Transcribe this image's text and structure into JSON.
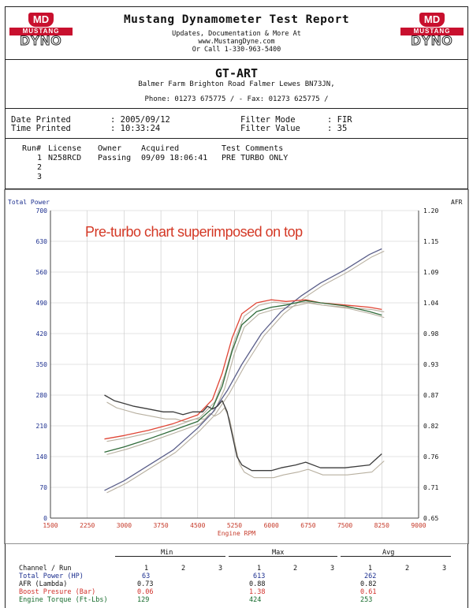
{
  "header": {
    "logo_left": {
      "badge": "MD",
      "top": "MUSTANG",
      "bottom": "DYNO"
    },
    "logo_right": {
      "badge": "MD",
      "top": "MUSTANG",
      "bottom": "DYNO"
    },
    "title": "Mustang Dynamometer Test Report",
    "sub1": "Updates, Documentation & More At",
    "sub2": "www.MustangDyne.com",
    "sub3": "Or Call 1-330-963-5400"
  },
  "shop": {
    "name": "GT-ART",
    "address": "Balmer Farm Brighton Road Falmer Lewes BN73JN,",
    "phone": "Phone: 01273 675775 /  - Fax: 01273 625775 /"
  },
  "meta": {
    "date_label": "Date Printed",
    "date_value": ": 2005/09/12",
    "time_label": "Time Printed",
    "time_value": ": 10:33:24",
    "filter_mode_label": "Filter Mode",
    "filter_mode_value": ": FIR",
    "filter_value_label": "Filter Value",
    "filter_value_value": ": 35"
  },
  "runs": {
    "headers": [
      "Run#",
      "License",
      "Owner",
      "Acquired",
      "Test Comments"
    ],
    "rows": [
      {
        "run": "1",
        "license": "N258RCD",
        "owner": "Passing",
        "acquired": "09/09 18:06:41",
        "comments": "PRE TURBO ONLY"
      },
      {
        "run": "2"
      },
      {
        "run": "3"
      }
    ]
  },
  "chart_data": {
    "type": "line",
    "annotation": "Pre-turbo chart superimposed on top",
    "ylabel_left": "Total Power",
    "ylabel_right": "AFR",
    "xlabel": "Engine RPM",
    "x_ticks": [
      "1500",
      "2250",
      "3000",
      "3750",
      "4500",
      "5250",
      "6000",
      "6750",
      "7500",
      "8250",
      "9000"
    ],
    "y_left_ticks": [
      "0",
      "70",
      "140",
      "210",
      "280",
      "350",
      "420",
      "490",
      "560",
      "630",
      "700"
    ],
    "y_right_ticks": [
      "0.65",
      "0.71",
      "0.76",
      "0.82",
      "0.87",
      "0.93",
      "0.98",
      "1.04",
      "1.09",
      "1.15",
      "1.20"
    ],
    "xlim": [
      1500,
      9000
    ],
    "ylim_left": [
      0,
      700
    ],
    "ylim_right": [
      0.65,
      1.2
    ],
    "grid": true,
    "colors": {
      "power": "#5b5f8a",
      "afr": "#3c3c3c",
      "boost": "#e04535",
      "torque": "#2f6b3a",
      "overlay": "#b8b0a0"
    },
    "series": [
      {
        "name": "Total Power (HP)",
        "color": "#5b5f8a",
        "axis": "left",
        "x": [
          2600,
          3000,
          3500,
          4000,
          4500,
          4800,
          5100,
          5400,
          5800,
          6200,
          6600,
          7000,
          7500,
          8000,
          8250
        ],
        "y": [
          63,
          85,
          120,
          155,
          205,
          240,
          290,
          350,
          420,
          470,
          505,
          535,
          565,
          600,
          613
        ]
      },
      {
        "name": "Boost Presure (Bar)",
        "color": "#e04535",
        "axis": "left",
        "x": [
          2600,
          3000,
          3500,
          4000,
          4500,
          4800,
          5000,
          5200,
          5400,
          5700,
          6000,
          6300,
          6700,
          7000,
          7500,
          8000,
          8250
        ],
        "y": [
          180,
          188,
          200,
          215,
          235,
          270,
          330,
          410,
          465,
          490,
          497,
          493,
          497,
          490,
          485,
          480,
          475
        ]
      },
      {
        "name": "Engine Torque (Ft-Lbs)",
        "color": "#2f6b3a",
        "axis": "left",
        "x": [
          2600,
          3000,
          3500,
          4000,
          4500,
          4800,
          5000,
          5200,
          5400,
          5700,
          6000,
          6300,
          6700,
          7000,
          7500,
          8000,
          8250
        ],
        "y": [
          150,
          162,
          180,
          200,
          220,
          250,
          300,
          380,
          440,
          470,
          480,
          485,
          495,
          490,
          483,
          470,
          462
        ]
      },
      {
        "name": "AFR (Lambda)",
        "color": "#3c3c3c",
        "axis": "right",
        "x": [
          2600,
          2800,
          3000,
          3200,
          3500,
          3800,
          4000,
          4200,
          4400,
          4600,
          4700,
          4800,
          4900,
          5000,
          5100,
          5200,
          5300,
          5400,
          5600,
          6000,
          6200,
          6500,
          6700,
          7000,
          7500,
          8000,
          8250
        ],
        "y": [
          0.87,
          0.86,
          0.855,
          0.85,
          0.845,
          0.84,
          0.84,
          0.835,
          0.84,
          0.84,
          0.85,
          0.845,
          0.85,
          0.86,
          0.84,
          0.8,
          0.76,
          0.745,
          0.735,
          0.735,
          0.74,
          0.745,
          0.75,
          0.74,
          0.74,
          0.745,
          0.765
        ]
      }
    ]
  },
  "stats": {
    "headers": {
      "min": "Min",
      "max": "Max",
      "avg": "Avg"
    },
    "run_label": "Channel / Run",
    "run_numbers": [
      "1",
      "2",
      "3"
    ],
    "rows": [
      {
        "label": "Total Power (HP)",
        "min": "63",
        "max": "613",
        "avg": "262",
        "color": "#1c2f8f"
      },
      {
        "label": "AFR (Lambda)",
        "min": "0.73",
        "max": "0.88",
        "avg": "0.82",
        "color": "#111111"
      },
      {
        "label": "Boost Presure (Bar)",
        "min": "0.06",
        "max": "1.38",
        "avg": "0.61",
        "color": "#d1302a"
      },
      {
        "label": "Engine Torque (Ft-Lbs)",
        "min": "129",
        "max": "424",
        "avg": "253",
        "color": "#166b2c"
      }
    ]
  }
}
